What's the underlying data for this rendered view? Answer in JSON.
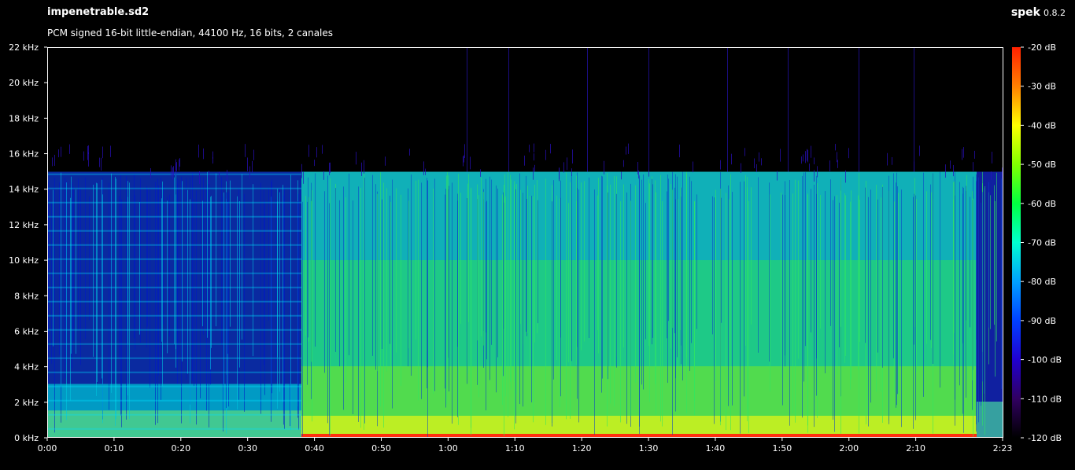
{
  "header": {
    "title": "impenetrable.sd2",
    "subtitle": "PCM signed 16-bit little-endian, 44100 Hz, 16 bits, 2 canales",
    "brand": "spek",
    "version": "0.8.2"
  },
  "axes": {
    "y_labels": [
      "0 kHz",
      "2 kHz",
      "4 kHz",
      "6 kHz",
      "8 kHz",
      "10 kHz",
      "12 kHz",
      "14 kHz",
      "16 kHz",
      "18 kHz",
      "20 kHz",
      "22 kHz"
    ],
    "x_labels": [
      "0:00",
      "0:10",
      "0:20",
      "0:30",
      "0:40",
      "0:50",
      "1:00",
      "1:10",
      "1:20",
      "1:30",
      "1:40",
      "1:50",
      "2:00",
      "2:10",
      "2:23"
    ],
    "x_seconds": [
      0,
      10,
      20,
      30,
      40,
      50,
      60,
      70,
      80,
      90,
      100,
      110,
      120,
      130,
      143
    ],
    "duration_seconds": 143,
    "freq_max_khz": 22
  },
  "scale": {
    "labels": [
      "-20 dB",
      "-30 dB",
      "-40 dB",
      "-50 dB",
      "-60 dB",
      "-70 dB",
      "-80 dB",
      "-90 dB",
      "-100 dB",
      "-110 dB",
      "-120 dB"
    ],
    "colors": [
      "#ff2000",
      "#ff8000",
      "#ffff00",
      "#80ff00",
      "#00ff40",
      "#00ffd0",
      "#00a0ff",
      "#0040ff",
      "#2000d0",
      "#300060",
      "#000000"
    ]
  }
}
